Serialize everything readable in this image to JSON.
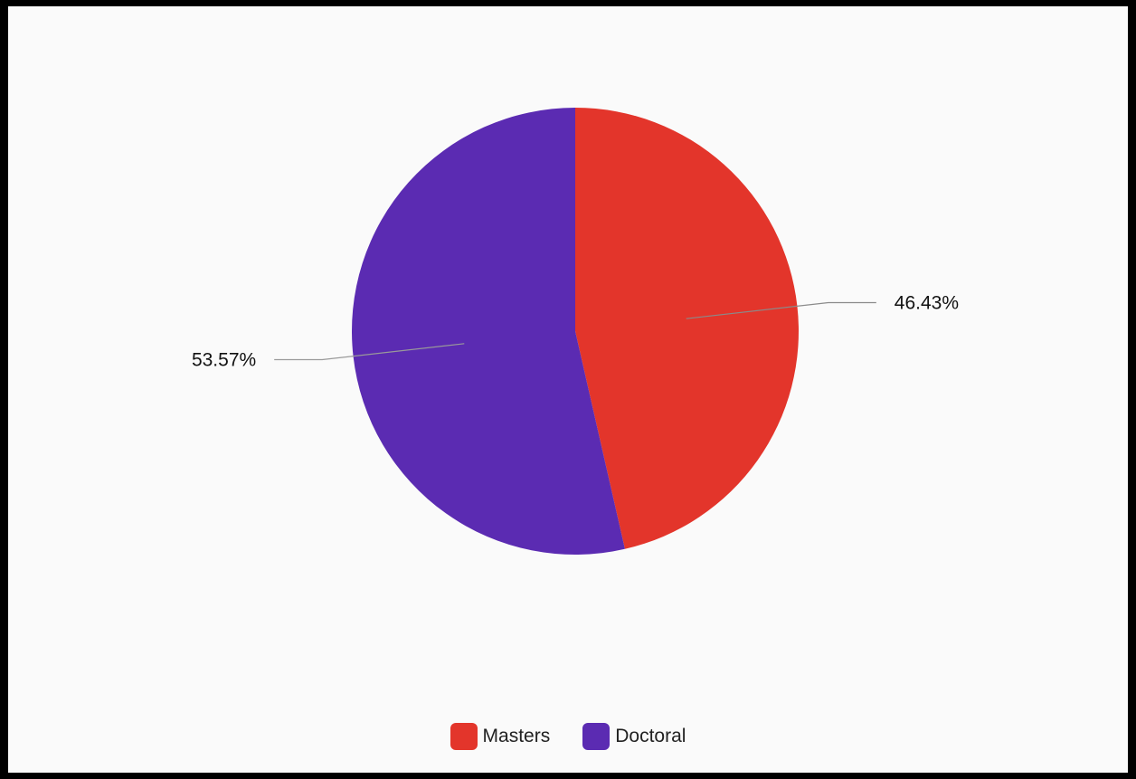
{
  "chart_data": {
    "type": "pie",
    "title": "",
    "slices": [
      {
        "label": "Masters",
        "value": 46.43,
        "display": "46.43%",
        "color": "#e3352b"
      },
      {
        "label": "Doctoral",
        "value": 53.57,
        "display": "53.57%",
        "color": "#5b2bb2"
      }
    ],
    "start": "top",
    "direction": "clockwise",
    "legend_position": "bottom",
    "label_style": "outside-with-leader-lines"
  },
  "legend": {
    "items": [
      {
        "label": "Masters",
        "color": "#e3352b"
      },
      {
        "label": "Doctoral",
        "color": "#5b2bb2"
      }
    ]
  }
}
